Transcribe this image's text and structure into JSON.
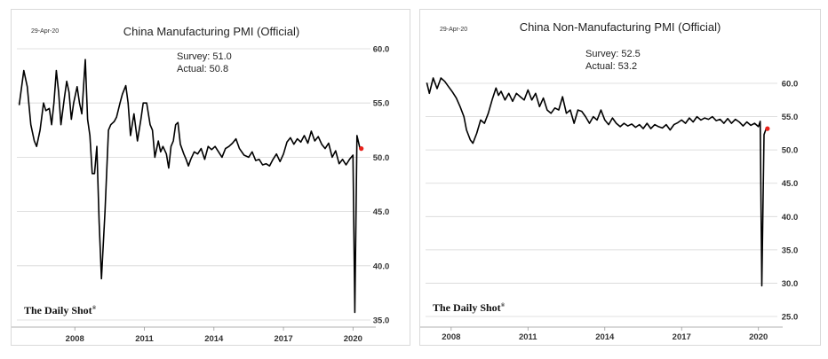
{
  "chart_data": [
    {
      "type": "line",
      "date": "29-Apr-20",
      "title": "China Manufacturing PMI (Official)",
      "annotation": {
        "survey": "Survey: 51.0",
        "actual": "Actual:  50.8"
      },
      "brand": "The Daily Shot",
      "brand_mark": "®",
      "x_ticks": [
        "2008",
        "2011",
        "2014",
        "2017",
        "2020"
      ],
      "x_tick_values": [
        2008,
        2011,
        2014,
        2017,
        2020
      ],
      "y_ticks": [
        "60.0",
        "55.0",
        "50.0",
        "45.0",
        "40.0",
        "35.0"
      ],
      "ylim": [
        35,
        60
      ],
      "xlim": [
        2005.5,
        2020.6
      ],
      "y_axis_position": "right",
      "grid": true,
      "series": [
        {
          "points": [
            [
              2005.6,
              54.8
            ],
            [
              2005.8,
              58.0
            ],
            [
              2005.95,
              56.5
            ],
            [
              2006.1,
              53.0
            ],
            [
              2006.25,
              51.5
            ],
            [
              2006.35,
              51.0
            ],
            [
              2006.5,
              52.5
            ],
            [
              2006.65,
              55.0
            ],
            [
              2006.75,
              54.3
            ],
            [
              2006.9,
              54.5
            ],
            [
              2007.0,
              53.0
            ],
            [
              2007.1,
              55.0
            ],
            [
              2007.2,
              58.0
            ],
            [
              2007.3,
              56.0
            ],
            [
              2007.4,
              53.0
            ],
            [
              2007.55,
              55.5
            ],
            [
              2007.65,
              57.0
            ],
            [
              2007.75,
              56.0
            ],
            [
              2007.85,
              53.5
            ],
            [
              2007.95,
              55.0
            ],
            [
              2008.1,
              56.5
            ],
            [
              2008.2,
              55.0
            ],
            [
              2008.3,
              54.0
            ],
            [
              2008.45,
              59.0
            ],
            [
              2008.55,
              53.5
            ],
            [
              2008.65,
              52.0
            ],
            [
              2008.75,
              48.5
            ],
            [
              2008.85,
              48.5
            ],
            [
              2008.95,
              51.0
            ],
            [
              2009.05,
              44.0
            ],
            [
              2009.15,
              38.8
            ],
            [
              2009.3,
              45.0
            ],
            [
              2009.45,
              52.5
            ],
            [
              2009.55,
              53.0
            ],
            [
              2009.7,
              53.3
            ],
            [
              2009.8,
              53.7
            ],
            [
              2009.95,
              55.0
            ],
            [
              2010.05,
              55.8
            ],
            [
              2010.2,
              56.6
            ],
            [
              2010.3,
              55.0
            ],
            [
              2010.4,
              52.0
            ],
            [
              2010.55,
              54.0
            ],
            [
              2010.7,
              51.5
            ],
            [
              2010.85,
              53.5
            ],
            [
              2010.95,
              55.0
            ],
            [
              2011.1,
              55.0
            ],
            [
              2011.25,
              53.0
            ],
            [
              2011.35,
              52.5
            ],
            [
              2011.45,
              50.0
            ],
            [
              2011.6,
              51.5
            ],
            [
              2011.7,
              50.5
            ],
            [
              2011.8,
              51.0
            ],
            [
              2011.95,
              50.3
            ],
            [
              2012.05,
              49.0
            ],
            [
              2012.15,
              51.0
            ],
            [
              2012.25,
              51.5
            ],
            [
              2012.35,
              53.0
            ],
            [
              2012.45,
              53.2
            ],
            [
              2012.55,
              51.2
            ],
            [
              2012.7,
              50.3
            ],
            [
              2012.8,
              49.8
            ],
            [
              2012.9,
              49.2
            ],
            [
              2013.0,
              49.8
            ],
            [
              2013.15,
              50.5
            ],
            [
              2013.3,
              50.3
            ],
            [
              2013.45,
              50.8
            ],
            [
              2013.6,
              49.8
            ],
            [
              2013.75,
              51.0
            ],
            [
              2013.9,
              50.7
            ],
            [
              2014.05,
              51.0
            ],
            [
              2014.2,
              50.5
            ],
            [
              2014.35,
              50.0
            ],
            [
              2014.5,
              50.8
            ],
            [
              2014.65,
              51.0
            ],
            [
              2014.8,
              51.3
            ],
            [
              2014.95,
              51.7
            ],
            [
              2015.1,
              50.8
            ],
            [
              2015.3,
              50.2
            ],
            [
              2015.5,
              50.0
            ],
            [
              2015.65,
              50.5
            ],
            [
              2015.8,
              49.7
            ],
            [
              2015.95,
              49.8
            ],
            [
              2016.1,
              49.3
            ],
            [
              2016.25,
              49.4
            ],
            [
              2016.4,
              49.2
            ],
            [
              2016.55,
              49.8
            ],
            [
              2016.7,
              50.3
            ],
            [
              2016.85,
              49.6
            ],
            [
              2017.0,
              50.3
            ],
            [
              2017.15,
              51.4
            ],
            [
              2017.3,
              51.8
            ],
            [
              2017.45,
              51.2
            ],
            [
              2017.6,
              51.7
            ],
            [
              2017.75,
              51.4
            ],
            [
              2017.9,
              52.0
            ],
            [
              2018.05,
              51.3
            ],
            [
              2018.2,
              52.4
            ],
            [
              2018.35,
              51.5
            ],
            [
              2018.5,
              51.9
            ],
            [
              2018.65,
              51.2
            ],
            [
              2018.8,
              50.8
            ],
            [
              2018.95,
              51.3
            ],
            [
              2019.1,
              50.0
            ],
            [
              2019.25,
              50.6
            ],
            [
              2019.4,
              49.4
            ],
            [
              2019.55,
              49.8
            ],
            [
              2019.7,
              49.3
            ],
            [
              2019.85,
              49.8
            ],
            [
              2020.0,
              50.2
            ],
            [
              2020.08,
              35.7
            ],
            [
              2020.17,
              52.0
            ],
            [
              2020.3,
              50.8
            ]
          ],
          "last_value": 50.8,
          "last_marker_color": "#e8211a"
        }
      ]
    },
    {
      "type": "line",
      "date": "29-Apr-20",
      "title": "China Non-Manufacturing PMI (Official)",
      "annotation": {
        "survey": "Survey: 52.5",
        "actual": "Actual:  53.2"
      },
      "brand": "The Daily Shot",
      "brand_mark": "®",
      "x_ticks": [
        "2008",
        "2011",
        "2014",
        "2017",
        "2020"
      ],
      "x_tick_values": [
        2008,
        2011,
        2014,
        2017,
        2020
      ],
      "y_ticks": [
        "60.0",
        "55.0",
        "50.0",
        "45.0",
        "40.0",
        "35.0",
        "30.0",
        "25.0"
      ],
      "ylim": [
        25,
        62
      ],
      "xlim": [
        2007.0,
        2020.6
      ],
      "y_axis_position": "right",
      "grid": true,
      "series": [
        {
          "points": [
            [
              2007.05,
              60.1
            ],
            [
              2007.15,
              58.5
            ],
            [
              2007.3,
              60.8
            ],
            [
              2007.45,
              59.2
            ],
            [
              2007.6,
              60.8
            ],
            [
              2007.75,
              60.3
            ],
            [
              2007.9,
              59.5
            ],
            [
              2008.05,
              58.7
            ],
            [
              2008.2,
              57.8
            ],
            [
              2008.35,
              56.5
            ],
            [
              2008.5,
              55.0
            ],
            [
              2008.6,
              53.0
            ],
            [
              2008.75,
              51.5
            ],
            [
              2008.85,
              51.0
            ],
            [
              2009.0,
              52.5
            ],
            [
              2009.15,
              54.5
            ],
            [
              2009.3,
              54.0
            ],
            [
              2009.45,
              55.5
            ],
            [
              2009.6,
              57.5
            ],
            [
              2009.75,
              59.3
            ],
            [
              2009.85,
              58.2
            ],
            [
              2009.95,
              58.8
            ],
            [
              2010.1,
              57.5
            ],
            [
              2010.25,
              58.5
            ],
            [
              2010.4,
              57.3
            ],
            [
              2010.55,
              58.5
            ],
            [
              2010.7,
              58.0
            ],
            [
              2010.85,
              57.5
            ],
            [
              2011.0,
              59.0
            ],
            [
              2011.15,
              57.5
            ],
            [
              2011.3,
              58.5
            ],
            [
              2011.45,
              56.5
            ],
            [
              2011.6,
              57.8
            ],
            [
              2011.75,
              56.0
            ],
            [
              2011.9,
              55.5
            ],
            [
              2012.05,
              56.3
            ],
            [
              2012.2,
              56.0
            ],
            [
              2012.35,
              58.0
            ],
            [
              2012.5,
              55.5
            ],
            [
              2012.65,
              56.0
            ],
            [
              2012.8,
              54.0
            ],
            [
              2012.95,
              56.0
            ],
            [
              2013.1,
              55.8
            ],
            [
              2013.25,
              55.0
            ],
            [
              2013.4,
              54.0
            ],
            [
              2013.55,
              55.0
            ],
            [
              2013.7,
              54.5
            ],
            [
              2013.85,
              56.0
            ],
            [
              2014.0,
              54.5
            ],
            [
              2014.15,
              53.8
            ],
            [
              2014.3,
              54.8
            ],
            [
              2014.45,
              54.0
            ],
            [
              2014.6,
              53.5
            ],
            [
              2014.75,
              54.0
            ],
            [
              2014.9,
              53.6
            ],
            [
              2015.05,
              53.9
            ],
            [
              2015.2,
              53.4
            ],
            [
              2015.35,
              53.8
            ],
            [
              2015.5,
              53.2
            ],
            [
              2015.65,
              54.0
            ],
            [
              2015.8,
              53.2
            ],
            [
              2015.95,
              53.8
            ],
            [
              2016.1,
              53.5
            ],
            [
              2016.25,
              53.3
            ],
            [
              2016.4,
              53.8
            ],
            [
              2016.55,
              53.0
            ],
            [
              2016.7,
              53.8
            ],
            [
              2016.85,
              54.1
            ],
            [
              2017.0,
              54.5
            ],
            [
              2017.15,
              54.0
            ],
            [
              2017.3,
              54.8
            ],
            [
              2017.45,
              54.2
            ],
            [
              2017.6,
              55.0
            ],
            [
              2017.75,
              54.5
            ],
            [
              2017.9,
              54.8
            ],
            [
              2018.05,
              54.6
            ],
            [
              2018.2,
              55.0
            ],
            [
              2018.35,
              54.4
            ],
            [
              2018.5,
              54.6
            ],
            [
              2018.65,
              54.0
            ],
            [
              2018.8,
              54.7
            ],
            [
              2018.95,
              54.0
            ],
            [
              2019.1,
              54.6
            ],
            [
              2019.25,
              54.2
            ],
            [
              2019.4,
              53.6
            ],
            [
              2019.55,
              54.2
            ],
            [
              2019.7,
              53.7
            ],
            [
              2019.85,
              54.0
            ],
            [
              2020.0,
              53.5
            ],
            [
              2020.07,
              54.3
            ],
            [
              2020.13,
              29.6
            ],
            [
              2020.22,
              52.3
            ],
            [
              2020.3,
              53.2
            ]
          ],
          "last_value": 53.2,
          "last_marker_color": "#e8211a"
        }
      ]
    }
  ]
}
